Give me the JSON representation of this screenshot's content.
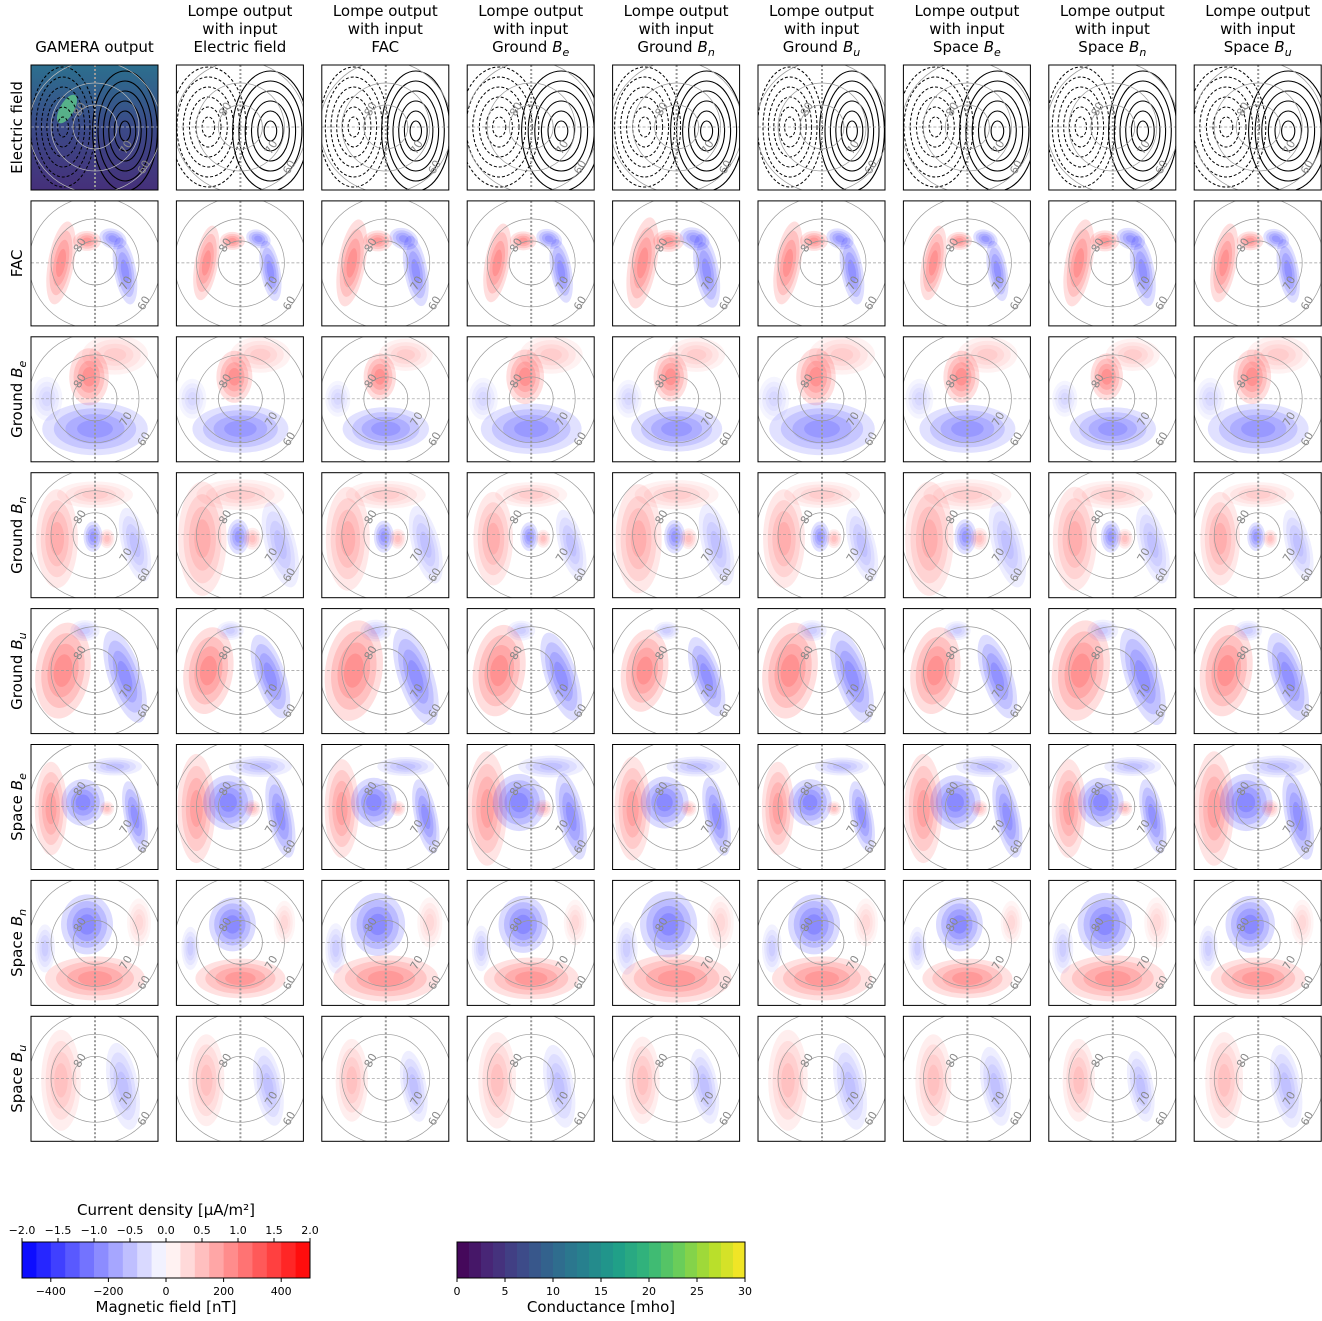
{
  "figure": {
    "columns": [
      {
        "title": [
          {
            "text": "GAMERA output"
          }
        ]
      },
      {
        "title": [
          {
            "text": "Lompe output"
          },
          {
            "text": "with input"
          },
          {
            "text": "Electric field"
          }
        ]
      },
      {
        "title": [
          {
            "text": "Lompe output"
          },
          {
            "text": "with input"
          },
          {
            "text": "FAC"
          }
        ]
      },
      {
        "title": [
          {
            "text": "Lompe output"
          },
          {
            "text": "with input"
          },
          {
            "text": "Ground",
            "symbol": "B",
            "sub": "e"
          }
        ]
      },
      {
        "title": [
          {
            "text": "Lompe output"
          },
          {
            "text": "with input"
          },
          {
            "text": "Ground",
            "symbol": "B",
            "sub": "n"
          }
        ]
      },
      {
        "title": [
          {
            "text": "Lompe output"
          },
          {
            "text": "with input"
          },
          {
            "text": "Ground",
            "symbol": "B",
            "sub": "u"
          }
        ]
      },
      {
        "title": [
          {
            "text": "Lompe output"
          },
          {
            "text": "with input"
          },
          {
            "text": "Space",
            "symbol": "B",
            "sub": "e"
          }
        ]
      },
      {
        "title": [
          {
            "text": "Lompe output"
          },
          {
            "text": "with input"
          },
          {
            "text": "Space",
            "symbol": "B",
            "sub": "n"
          }
        ]
      },
      {
        "title": [
          {
            "text": "Lompe output"
          },
          {
            "text": "with input"
          },
          {
            "text": "Space",
            "symbol": "B",
            "sub": "u"
          }
        ]
      }
    ],
    "rows": [
      {
        "text": "Electric field"
      },
      {
        "text": "FAC"
      },
      {
        "text": "Ground",
        "symbol": "B",
        "sub": "e"
      },
      {
        "text": "Ground",
        "symbol": "B",
        "sub": "n"
      },
      {
        "text": "Ground",
        "symbol": "B",
        "sub": "u"
      },
      {
        "text": "Space",
        "symbol": "B",
        "sub": "e"
      },
      {
        "text": "Space",
        "symbol": "B",
        "sub": "n"
      },
      {
        "text": "Space",
        "symbol": "B",
        "sub": "u"
      }
    ],
    "latitude_labels": [
      80,
      70,
      60
    ],
    "colorbars": [
      {
        "top_label": "Current density [μA/m²]",
        "top_lim": [
          -2,
          2
        ],
        "top_ticks": [
          {
            "value": -2,
            "label": "−2.0"
          },
          {
            "value": -1.5,
            "label": "−1.5"
          },
          {
            "value": -1,
            "label": "−1.0"
          },
          {
            "value": -0.5,
            "label": "−0.5"
          },
          {
            "value": 0,
            "label": "0.0"
          },
          0.5,
          {
            "value": 1,
            "label": "1.0"
          },
          1.5,
          {
            "value": 2,
            "label": "2.0"
          }
        ],
        "label": "Magnetic field [nT]",
        "lim": [
          -500,
          500
        ],
        "ticks": [
          {
            "value": -400,
            "label": "−400"
          },
          {
            "value": -200,
            "label": "−200"
          },
          0,
          200,
          400
        ],
        "colors": [
          "#0000ff",
          "#ffffff",
          "#ff0000"
        ],
        "levels": 20
      },
      {
        "label": "Conductance [mho]",
        "lim": [
          0,
          30
        ],
        "ticks": [
          0,
          5,
          10,
          15,
          20,
          25,
          30
        ],
        "colors": [
          "#440154",
          "#482878",
          "#3e4989",
          "#31688e",
          "#26828e",
          "#1f9e89",
          "#35b779",
          "#6ece58",
          "#b5de2b",
          "#fde725"
        ],
        "levels": 24
      }
    ]
  }
}
